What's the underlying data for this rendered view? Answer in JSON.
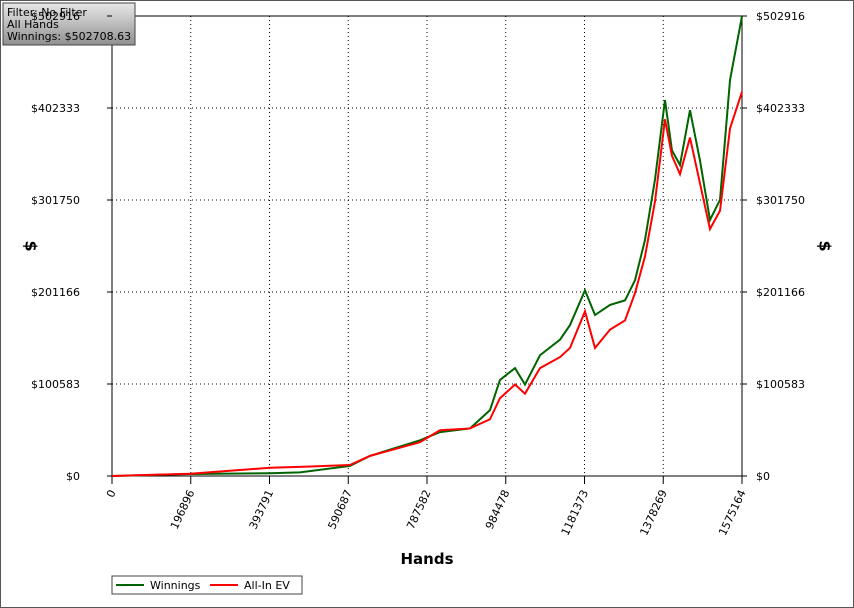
{
  "chart_data": {
    "type": "line",
    "annotations": [
      "Filter: No Filter",
      "All Hands",
      "Winnings: $502708.63"
    ],
    "xlabel": "Hands",
    "ylabel": "$",
    "xlim": [
      0,
      1575164
    ],
    "xticks": [
      0,
      196896,
      393791,
      590687,
      787582,
      984478,
      1181373,
      1378269,
      1575164
    ],
    "ylim": [
      0,
      502916
    ],
    "yticks": [
      {
        "value": 0,
        "label": "$0"
      },
      {
        "value": 100583,
        "label": "$100583"
      },
      {
        "value": 201166,
        "label": "$201166"
      },
      {
        "value": 301750,
        "label": "$301750"
      },
      {
        "value": 402333,
        "label": "$402333"
      },
      {
        "value": 502916,
        "label": "$502916"
      }
    ],
    "grid": true,
    "legend": "bottom-left",
    "x": [
      0,
      195000,
      395000,
      470000,
      595000,
      645000,
      770000,
      820000,
      895000,
      945000,
      970000,
      1007600,
      1032600,
      1070100,
      1120100,
      1145100,
      1182600,
      1207600,
      1245100,
      1282600,
      1307600,
      1332600,
      1357600,
      1382600,
      1400100,
      1420100,
      1445100,
      1470100,
      1495100,
      1520200,
      1545200,
      1575164
    ],
    "series": [
      {
        "name": "Winnings",
        "color": "#006400",
        "values": [
          0,
          2200,
          3000,
          4000,
          11000,
          22000,
          39000,
          48000,
          52000,
          72000,
          105000,
          118000,
          100000,
          132000,
          149000,
          165000,
          203000,
          176000,
          187000,
          192000,
          214000,
          258000,
          324000,
          411000,
          356000,
          340000,
          400000,
          345000,
          280000,
          302000,
          433000,
          502708.63
        ]
      },
      {
        "name": "All-In EV",
        "color": "#ff0000",
        "values": [
          0,
          2500,
          9000,
          10000,
          12000,
          22000,
          37000,
          50000,
          52000,
          62000,
          85000,
          100000,
          90000,
          118000,
          130000,
          140000,
          180000,
          140000,
          160000,
          170000,
          200000,
          240000,
          300000,
          390000,
          350000,
          330000,
          370000,
          320000,
          270000,
          290000,
          380000,
          420000
        ]
      }
    ]
  }
}
